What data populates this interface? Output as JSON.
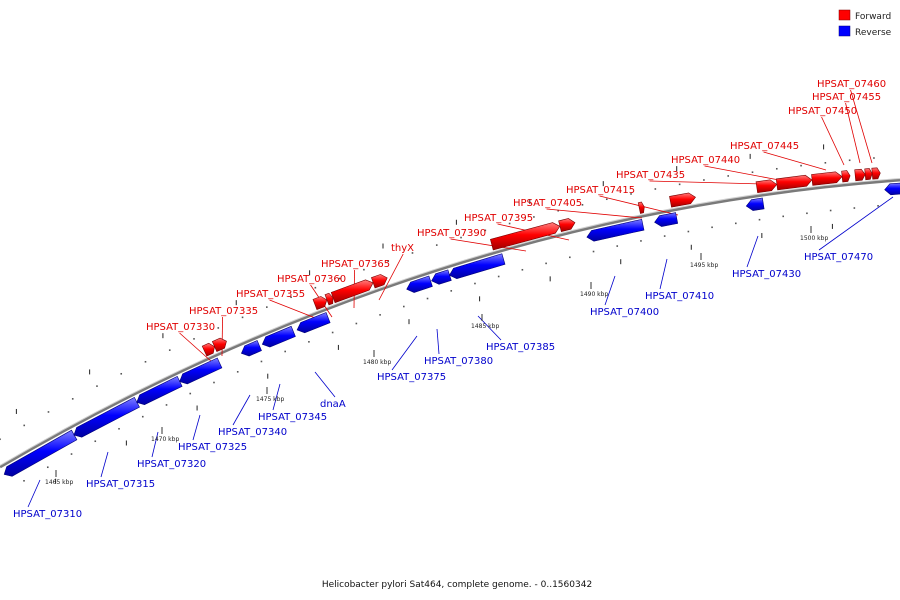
{
  "caption": "Helicobacter pylori Sat464, complete genome. - 0..1560342",
  "legend": [
    {
      "label": "Forward",
      "color": "#ff0000"
    },
    {
      "label": "Reverse",
      "color": "#0000ff"
    }
  ],
  "colors": {
    "forward": "#ff0000",
    "reverse": "#0000ff",
    "backbone": "#888888"
  },
  "scale_labels": [
    "1465 kbp",
    "1470 kbp",
    "1475 kbp",
    "1480 kbp",
    "1485 kbp",
    "1490 kbp",
    "1495 kbp",
    "1500 kbp"
  ],
  "genes_forward": [
    "HPSAT_07330",
    "HPSAT_07335",
    "HPSAT_07355",
    "HPSAT_07360",
    "HPSAT_07365",
    "thyX",
    "HPSAT_07390",
    "HPSAT_07395",
    "HPSAT_07405",
    "HPSAT_07415",
    "HPSAT_07435",
    "HPSAT_07440",
    "HPSAT_07445",
    "HPSAT_07450",
    "HPSAT_07455",
    "HPSAT_07460"
  ],
  "genes_reverse": [
    "HPSAT_07310",
    "HPSAT_07315",
    "HPSAT_07320",
    "HPSAT_07325",
    "HPSAT_07340",
    "HPSAT_07345",
    "dnaA",
    "HPSAT_07375",
    "HPSAT_07380",
    "HPSAT_07385",
    "HPSAT_07400",
    "HPSAT_07410",
    "HPSAT_07430",
    "HPSAT_07470"
  ]
}
